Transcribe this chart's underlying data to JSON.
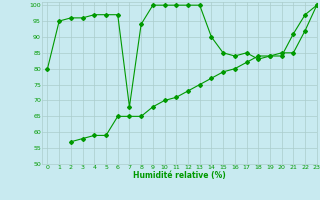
{
  "xlabel": "Humidité relative (%)",
  "xlim": [
    -0.5,
    23
  ],
  "ylim": [
    50,
    101
  ],
  "yticks": [
    50,
    55,
    60,
    65,
    70,
    75,
    80,
    85,
    90,
    95,
    100
  ],
  "xticks": [
    0,
    1,
    2,
    3,
    4,
    5,
    6,
    7,
    8,
    9,
    10,
    11,
    12,
    13,
    14,
    15,
    16,
    17,
    18,
    19,
    20,
    21,
    22,
    23
  ],
  "background_color": "#c8eaf0",
  "grid_color": "#aacccc",
  "line_color": "#009900",
  "line1_x": [
    0,
    1,
    2,
    3,
    4,
    5,
    6,
    7,
    8,
    9,
    10,
    11,
    12,
    13,
    14,
    15,
    16,
    17,
    18,
    19,
    20,
    21,
    22,
    23
  ],
  "line1_y": [
    80,
    95,
    96,
    96,
    97,
    97,
    97,
    68,
    94,
    100,
    100,
    100,
    100,
    100,
    90,
    85,
    84,
    85,
    83,
    84,
    84,
    91,
    97,
    100
  ],
  "line2_x": [
    2,
    3,
    4,
    5,
    6,
    7,
    8,
    9,
    10,
    11,
    12,
    13,
    14,
    15,
    16,
    17,
    18,
    19,
    20,
    21,
    22,
    23
  ],
  "line2_y": [
    57,
    58,
    59,
    59,
    65,
    65,
    65,
    68,
    70,
    71,
    73,
    75,
    77,
    79,
    80,
    82,
    84,
    84,
    85,
    85,
    92,
    100
  ]
}
